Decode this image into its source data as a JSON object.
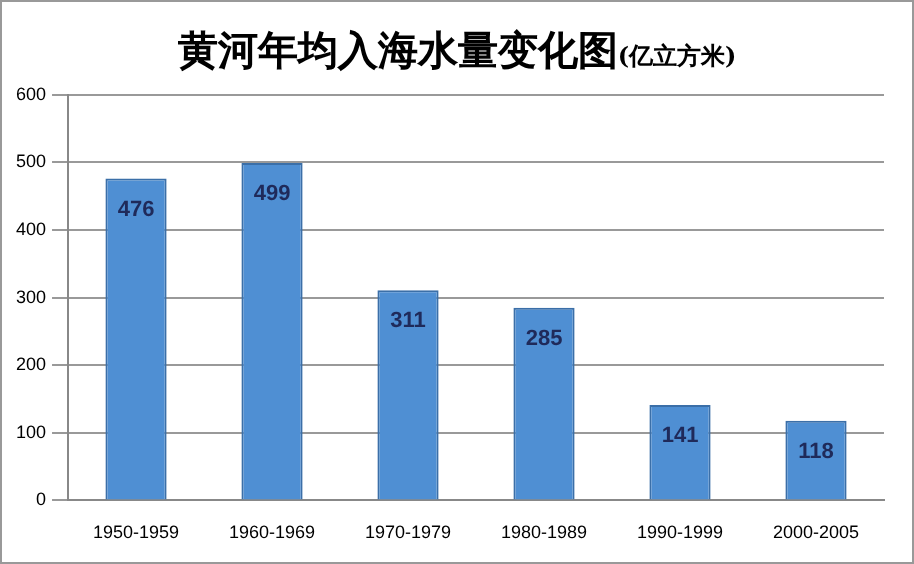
{
  "chart_data": {
    "type": "bar",
    "title": "黄河年均入海水量变化图",
    "subtitle": "(亿立方米)",
    "categories": [
      "1950-1959",
      "1960-1969",
      "1970-1979",
      "1980-1989",
      "1990-1999",
      "2000-2005"
    ],
    "values": [
      476,
      499,
      311,
      285,
      141,
      118
    ],
    "color": "#4f8fd3",
    "ylim": [
      0,
      600
    ],
    "yticks": [
      0,
      100,
      200,
      300,
      400,
      500,
      600
    ],
    "grid": "y",
    "data_labels": true
  }
}
